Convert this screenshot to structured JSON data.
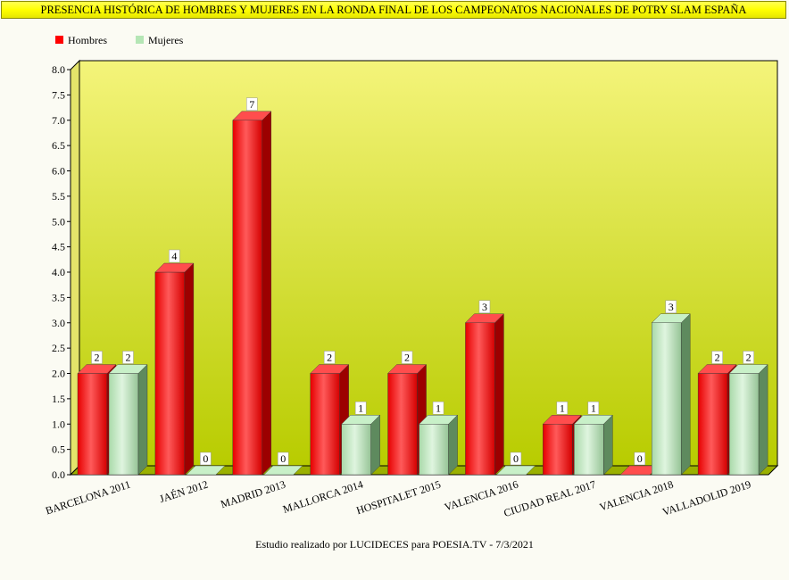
{
  "chart_data": {
    "type": "bar",
    "title": "PRESENCIA HISTÓRICA DE HOMBRES Y MUJERES EN LA RONDA FINAL DE LOS CAMPEONATOS NACIONALES DE POTRY SLAM ESPAÑA",
    "categories": [
      "BARCELONA 2011",
      "JAÉN 2012",
      "MADRID 2013",
      "MALLORCA 2014",
      "HOSPITALET 2015",
      "VALENCIA 2016",
      "CIUDAD REAL 2017",
      "VALENCIA 2018",
      "VALLADOLID 2019"
    ],
    "series": [
      {
        "name": "Hombres",
        "color": "#ff0000",
        "values": [
          2,
          4,
          7,
          2,
          2,
          3,
          1,
          0,
          2
        ]
      },
      {
        "name": "Mujeres",
        "color": "#b5e6b5",
        "values": [
          2,
          0,
          0,
          1,
          1,
          0,
          1,
          3,
          2
        ]
      }
    ],
    "ylim": [
      0,
      8
    ],
    "ytick_step": 0.5,
    "grid": false,
    "legend_position": "top-left",
    "data_labels": true,
    "footer": "Estudio realizado por LUCIDECES para POESIA.TV - 7/3/2021"
  }
}
